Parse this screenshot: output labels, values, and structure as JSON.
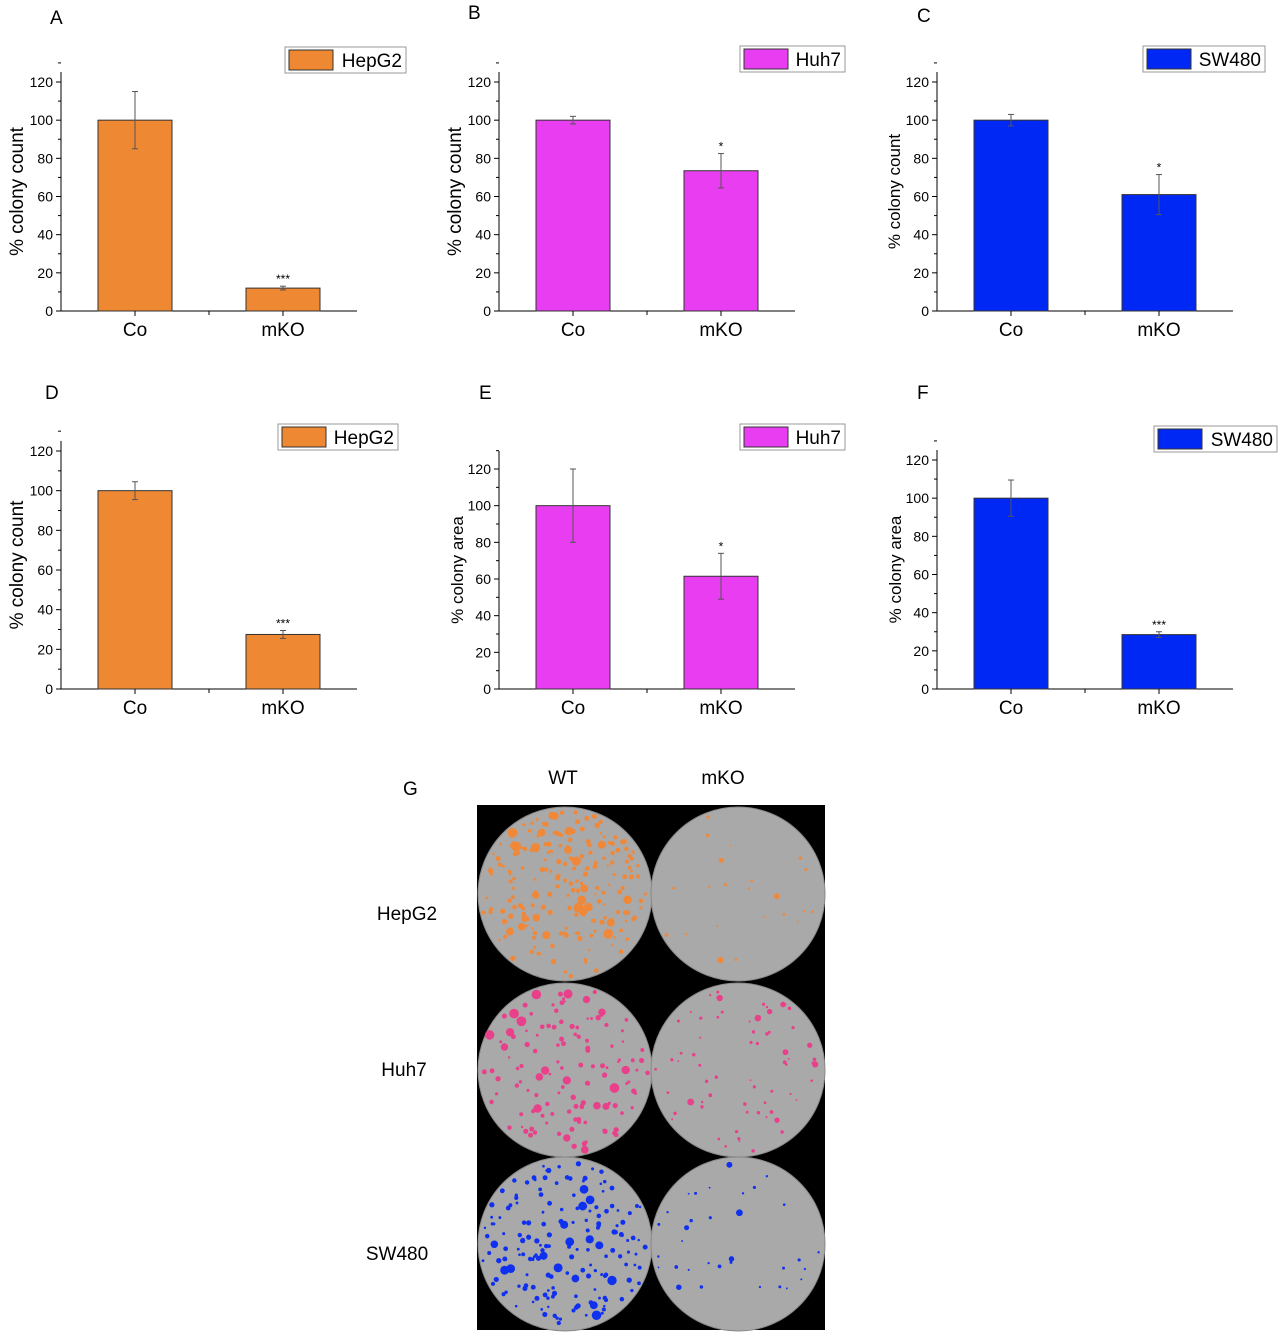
{
  "chart_data": [
    {
      "panel": "A",
      "type": "bar",
      "categories": [
        "Co",
        "mKO"
      ],
      "ylabel": "% colony count",
      "legend": "HepG2",
      "legend_position": "top-right",
      "color": "#EE8833",
      "yticks": [
        0,
        20,
        40,
        60,
        80,
        100,
        120
      ],
      "ylim": [
        0,
        125
      ],
      "values": [
        100,
        12
      ],
      "errors": [
        15,
        1
      ],
      "significance": [
        "",
        "***"
      ]
    },
    {
      "panel": "B",
      "type": "bar",
      "categories": [
        "Co",
        "mKO"
      ],
      "ylabel": "% colony count",
      "legend": "Huh7",
      "legend_position": "top-right",
      "color": "#E83DF0",
      "yticks": [
        0,
        20,
        40,
        60,
        80,
        100,
        120
      ],
      "ylim": [
        0,
        125
      ],
      "values": [
        100,
        73.5
      ],
      "errors": [
        2,
        9
      ],
      "significance": [
        "",
        "*"
      ]
    },
    {
      "panel": "C",
      "type": "bar",
      "categories": [
        "Co",
        "mKO"
      ],
      "ylabel": "% colony count",
      "legend": "SW480",
      "legend_position": "top-right",
      "color": "#0028F5",
      "yticks": [
        0,
        20,
        40,
        60,
        80,
        100,
        120
      ],
      "ylim": [
        0,
        125
      ],
      "values": [
        100,
        61
      ],
      "errors": [
        3,
        10.5
      ],
      "significance": [
        "",
        "*"
      ]
    },
    {
      "panel": "D",
      "type": "bar",
      "categories": [
        "Co",
        "mKO"
      ],
      "ylabel": "% colony count",
      "legend": "HepG2",
      "legend_position": "top-right",
      "color": "#EE8833",
      "yticks": [
        0,
        20,
        40,
        60,
        80,
        100,
        120
      ],
      "ylim": [
        0,
        120
      ],
      "values": [
        100,
        27.5
      ],
      "errors": [
        4.5,
        2
      ],
      "significance": [
        "",
        "***"
      ]
    },
    {
      "panel": "E",
      "type": "bar",
      "categories": [
        "Co",
        "mKO"
      ],
      "ylabel": "% colony area",
      "legend": "Huh7",
      "legend_position": "top-right",
      "color": "#E83DF0",
      "yticks": [
        0,
        20,
        40,
        60,
        80,
        100,
        120
      ],
      "ylim": [
        0,
        130
      ],
      "values": [
        100,
        61.5
      ],
      "errors": [
        20,
        12.5
      ],
      "significance": [
        "",
        "*"
      ]
    },
    {
      "panel": "F",
      "type": "bar",
      "categories": [
        "Co",
        "mKO"
      ],
      "ylabel": "% colony area",
      "legend": "SW480",
      "legend_position": "top-right",
      "color": "#0028F5",
      "yticks": [
        0,
        20,
        40,
        60,
        80,
        100,
        120
      ],
      "ylim": [
        0,
        125
      ],
      "values": [
        100,
        28.5
      ],
      "errors": [
        9.5,
        1.5
      ],
      "significance": [
        "",
        "***"
      ]
    }
  ],
  "panel_g": {
    "letter": "G",
    "columns": [
      "WT",
      "mKO"
    ],
    "rows": [
      {
        "label": "HepG2",
        "color": "#F0883A",
        "density": [
          1.0,
          0.1
        ]
      },
      {
        "label": "Huh7",
        "color": "#E8408A",
        "density": [
          0.6,
          0.3
        ]
      },
      {
        "label": "SW480",
        "color": "#1030F0",
        "density": [
          0.8,
          0.15
        ]
      }
    ]
  }
}
